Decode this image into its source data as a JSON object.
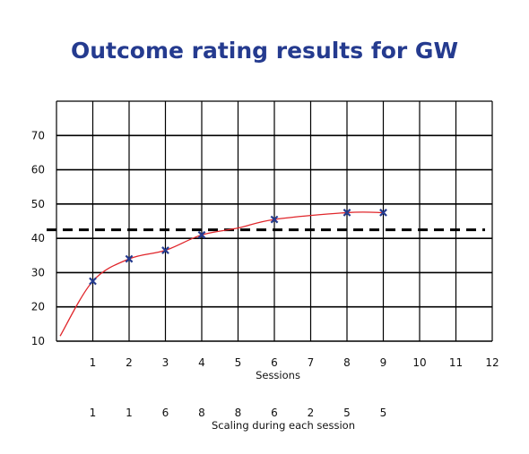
{
  "chart_data": {
    "type": "line",
    "title": "Outcome rating results for GW",
    "xlabel": "Sessions",
    "ylabel": "",
    "xlim": [
      0,
      12
    ],
    "ylim": [
      10,
      80
    ],
    "x_ticks": [
      "1",
      "2",
      "3",
      "4",
      "5",
      "6",
      "7",
      "8",
      "9",
      "10",
      "11",
      "12"
    ],
    "y_ticks": [
      "10",
      "20",
      "30",
      "40",
      "50",
      "60",
      "70"
    ],
    "grid": true,
    "series": [
      {
        "color": "#e0262b",
        "marker_color": "#253b8f",
        "points": [
          {
            "x": 1,
            "y": 27.5
          },
          {
            "x": 2,
            "y": 34
          },
          {
            "x": 3,
            "y": 36.5
          },
          {
            "x": 4,
            "y": 41
          },
          {
            "x": 6,
            "y": 45.5
          },
          {
            "x": 8,
            "y": 47.5
          },
          {
            "x": 9,
            "y": 47.5
          }
        ],
        "curve_start": {
          "x": 0.1,
          "y": 11.5
        },
        "curve_through": {
          "x": 5,
          "y": 43
        }
      }
    ],
    "reference_line": {
      "y": 42.5,
      "style": "dashed",
      "color": "#000000"
    },
    "secondary_row": {
      "label": "Scaling during each session",
      "values": [
        {
          "x": 1,
          "label": "1"
        },
        {
          "x": 2,
          "label": "1"
        },
        {
          "x": 3,
          "label": "6"
        },
        {
          "x": 4,
          "label": "8"
        },
        {
          "x": 5,
          "label": "8"
        },
        {
          "x": 6,
          "label": "6"
        },
        {
          "x": 7,
          "label": "2"
        },
        {
          "x": 8,
          "label": "5"
        },
        {
          "x": 9,
          "label": "5"
        }
      ]
    }
  }
}
